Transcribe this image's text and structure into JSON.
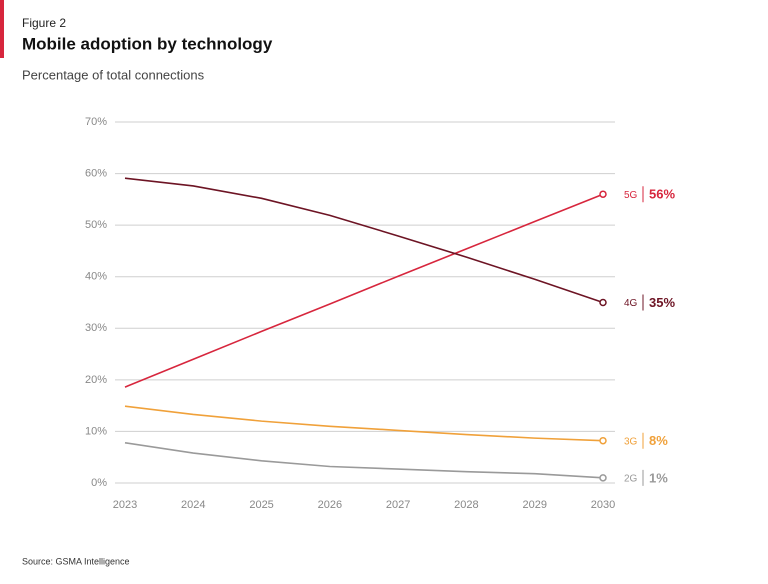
{
  "figure_label": "Figure 2",
  "source": "Source: GSMA Intelligence",
  "chart_data": {
    "type": "line",
    "title": "Mobile adoption by technology",
    "subtitle": "Percentage of total connections",
    "categories": [
      "2023",
      "2024",
      "2025",
      "2026",
      "2027",
      "2028",
      "2029",
      "2030"
    ],
    "series": [
      {
        "name": "5G",
        "color": "#d7263d",
        "values": [
          18.6,
          24,
          29.4,
          34.7,
          40.1,
          45.4,
          50.7,
          56
        ],
        "value_labels": [
          null,
          null,
          null,
          null,
          null,
          null,
          null,
          "56%"
        ]
      },
      {
        "name": "4G",
        "color": "#6d1424",
        "values": [
          59.1,
          57.6,
          55.2,
          51.9,
          47.9,
          43.8,
          39.5,
          35
        ],
        "value_labels": [
          null,
          null,
          null,
          null,
          null,
          null,
          null,
          "35%"
        ]
      },
      {
        "name": "3G",
        "color": "#f0a13a",
        "values": [
          14.9,
          13.3,
          12,
          11,
          10.2,
          9.4,
          8.7,
          8.2
        ],
        "value_labels": [
          null,
          null,
          null,
          null,
          null,
          null,
          null,
          "8%"
        ]
      },
      {
        "name": "2G",
        "color": "#9a9a9a",
        "values": [
          7.8,
          5.8,
          4.3,
          3.2,
          2.7,
          2.2,
          1.8,
          1
        ],
        "value_labels": [
          null,
          null,
          null,
          null,
          null,
          null,
          null,
          "1%"
        ]
      }
    ],
    "ylim": [
      0,
      70
    ],
    "yticks": [
      {
        "value": 0,
        "label": "0%"
      },
      {
        "value": 10,
        "label": "10%"
      },
      {
        "value": 20,
        "label": "20%"
      },
      {
        "value": 30,
        "label": "30%"
      },
      {
        "value": 40,
        "label": "40%"
      },
      {
        "value": 50,
        "label": "50%"
      },
      {
        "value": 60,
        "label": "60%"
      },
      {
        "value": 70,
        "label": "70%"
      }
    ],
    "grid": true
  }
}
